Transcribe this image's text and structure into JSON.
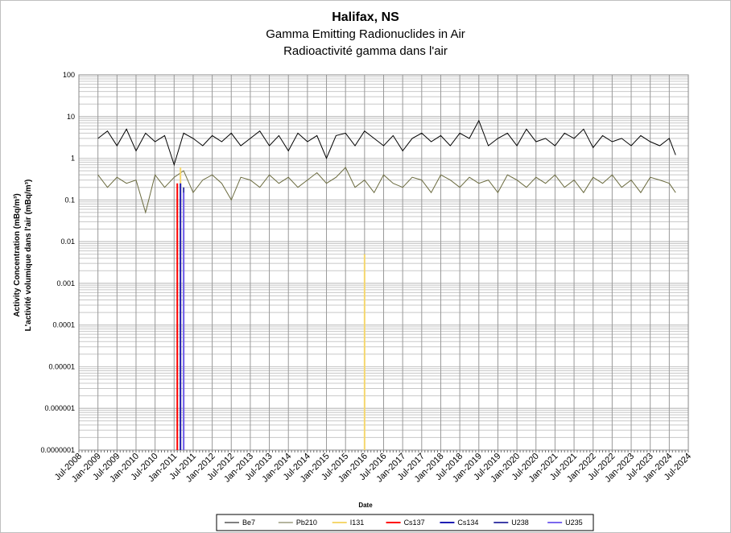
{
  "chart_data": {
    "type": "line",
    "title": "Halifax, NS",
    "subtitle": "Gamma Emitting Radionuclides in Air",
    "subtitle_fr": "Radioactivité gamma dans l'air",
    "ylabel": "Activity Concentration  (mBq/m³)",
    "ylabel_fr": "L'activité volumique dans l'air (mBq/m³)",
    "xlabel": "Date",
    "y_scale": "log",
    "ylim": [
      1e-07,
      100
    ],
    "y_ticks": [
      "100",
      "10",
      "1",
      "0.1",
      "0.01",
      "0.001",
      "0.0001",
      "0.00001",
      "0.000001",
      "0.0000001"
    ],
    "x_range": [
      "2008-07",
      "2024-07"
    ],
    "x_ticks": [
      "Jul-2008",
      "Jan-2009",
      "Jul-2009",
      "Jan-2010",
      "Jul-2010",
      "Jan-2011",
      "Jul-2011",
      "Jan-2012",
      "Jul-2012",
      "Jan-2013",
      "Jul-2013",
      "Jan-2014",
      "Jul-2014",
      "Jan-2015",
      "Jul-2015",
      "Jan-2016",
      "Jul-2016",
      "Jan-2017",
      "Jul-2017",
      "Jan-2018",
      "Jul-2018",
      "Jan-2019",
      "Jul-2019",
      "Jan-2020",
      "Jul-2020",
      "Jan-2021",
      "Jul-2021",
      "Jan-2022",
      "Jul-2022",
      "Jan-2023",
      "Jul-2023",
      "Jan-2024",
      "Jul-2024"
    ],
    "grid": true,
    "legend_position": "bottom",
    "series": [
      {
        "name": "Be7",
        "color": "#000000",
        "x": [
          "2009-01",
          "2009-04",
          "2009-07",
          "2009-10",
          "2010-01",
          "2010-04",
          "2010-07",
          "2010-10",
          "2011-01",
          "2011-04",
          "2011-07",
          "2011-10",
          "2012-01",
          "2012-04",
          "2012-07",
          "2012-10",
          "2013-01",
          "2013-04",
          "2013-07",
          "2013-10",
          "2014-01",
          "2014-04",
          "2014-07",
          "2014-10",
          "2015-01",
          "2015-04",
          "2015-07",
          "2015-10",
          "2016-01",
          "2016-04",
          "2016-07",
          "2016-10",
          "2017-01",
          "2017-04",
          "2017-07",
          "2017-10",
          "2018-01",
          "2018-04",
          "2018-07",
          "2018-10",
          "2019-01",
          "2019-04",
          "2019-07",
          "2019-10",
          "2020-01",
          "2020-04",
          "2020-07",
          "2020-10",
          "2021-01",
          "2021-04",
          "2021-07",
          "2021-10",
          "2022-01",
          "2022-04",
          "2022-07",
          "2022-10",
          "2023-01",
          "2023-04",
          "2023-07",
          "2023-10",
          "2024-01",
          "2024-03"
        ],
        "y": [
          3.0,
          4.5,
          2.0,
          5.0,
          1.5,
          4.0,
          2.5,
          3.5,
          0.7,
          4.0,
          3.0,
          2.0,
          3.5,
          2.5,
          4.0,
          2.0,
          3.0,
          4.5,
          2.0,
          3.5,
          1.5,
          4.0,
          2.5,
          3.5,
          1.0,
          3.5,
          4.0,
          2.0,
          4.5,
          3.0,
          2.0,
          3.5,
          1.5,
          3.0,
          4.0,
          2.5,
          3.5,
          2.0,
          4.0,
          3.0,
          8.0,
          2.0,
          3.0,
          4.0,
          2.0,
          5.0,
          2.5,
          3.0,
          2.0,
          4.0,
          3.0,
          5.0,
          1.8,
          3.5,
          2.5,
          3.0,
          2.0,
          3.5,
          2.5,
          2.0,
          3.0,
          1.2
        ]
      },
      {
        "name": "Pb210",
        "color": "#6b6b3f",
        "x": [
          "2009-01",
          "2009-04",
          "2009-07",
          "2009-10",
          "2010-01",
          "2010-04",
          "2010-07",
          "2010-10",
          "2011-01",
          "2011-04",
          "2011-07",
          "2011-10",
          "2012-01",
          "2012-04",
          "2012-07",
          "2012-10",
          "2013-01",
          "2013-04",
          "2013-07",
          "2013-10",
          "2014-01",
          "2014-04",
          "2014-07",
          "2014-10",
          "2015-01",
          "2015-04",
          "2015-07",
          "2015-10",
          "2016-01",
          "2016-04",
          "2016-07",
          "2016-10",
          "2017-01",
          "2017-04",
          "2017-07",
          "2017-10",
          "2018-01",
          "2018-04",
          "2018-07",
          "2018-10",
          "2019-01",
          "2019-04",
          "2019-07",
          "2019-10",
          "2020-01",
          "2020-04",
          "2020-07",
          "2020-10",
          "2021-01",
          "2021-04",
          "2021-07",
          "2021-10",
          "2022-01",
          "2022-04",
          "2022-07",
          "2022-10",
          "2023-01",
          "2023-04",
          "2023-07",
          "2023-10",
          "2024-01",
          "2024-03"
        ],
        "y": [
          0.4,
          0.2,
          0.35,
          0.25,
          0.3,
          0.05,
          0.4,
          0.2,
          0.35,
          0.5,
          0.15,
          0.3,
          0.4,
          0.25,
          0.1,
          0.35,
          0.3,
          0.2,
          0.4,
          0.25,
          0.35,
          0.2,
          0.3,
          0.45,
          0.25,
          0.35,
          0.6,
          0.2,
          0.3,
          0.15,
          0.4,
          0.25,
          0.2,
          0.35,
          0.3,
          0.15,
          0.4,
          0.3,
          0.2,
          0.35,
          0.25,
          0.3,
          0.15,
          0.4,
          0.3,
          0.2,
          0.35,
          0.25,
          0.4,
          0.2,
          0.3,
          0.15,
          0.35,
          0.25,
          0.4,
          0.2,
          0.3,
          0.15,
          0.35,
          0.3,
          0.25,
          0.15
        ]
      },
      {
        "name": "I131",
        "color": "#f5d76e",
        "spikes": [
          {
            "date": "2011-03",
            "peak": 0.6
          },
          {
            "date": "2016-01",
            "peak": 0.005
          }
        ]
      },
      {
        "name": "Cs137",
        "color": "#ff0000",
        "spikes": [
          {
            "date": "2011-02",
            "peak": 0.25
          }
        ]
      },
      {
        "name": "Cs134",
        "color": "#1f1fb4",
        "spikes": [
          {
            "date": "2011-03",
            "peak": 0.25
          }
        ]
      },
      {
        "name": "U238",
        "color": "#3f3fa8",
        "spikes": [
          {
            "date": "2011-04",
            "peak": 0.2
          }
        ]
      },
      {
        "name": "U235",
        "color": "#7b68ee",
        "spikes": [
          {
            "date": "2011-04",
            "peak": 0.15
          }
        ]
      }
    ]
  }
}
